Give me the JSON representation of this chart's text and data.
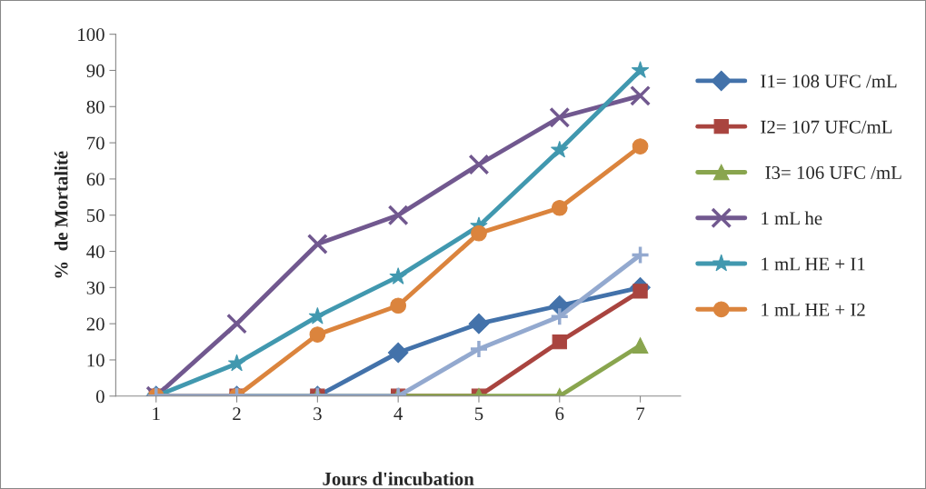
{
  "chart_data": {
    "type": "line",
    "xlabel": "Jours d'incubation",
    "ylabel": "%  de Mortalité",
    "categories": [
      "1",
      "2",
      "3",
      "4",
      "5",
      "6",
      "7"
    ],
    "ylim": [
      0,
      100
    ],
    "yticks": [
      0,
      10,
      20,
      30,
      40,
      50,
      60,
      70,
      80,
      90,
      100
    ],
    "grid": false,
    "legend": "right",
    "series": [
      {
        "name": "I1= 108 UFC /mL",
        "color": "#4372aa",
        "marker": "diamond",
        "values": [
          0,
          0,
          0,
          12,
          20,
          25,
          30
        ]
      },
      {
        "name": "I2= 107 UFC/mL",
        "color": "#a9443f",
        "marker": "square",
        "values": [
          0,
          0,
          0,
          0,
          0,
          15,
          29
        ]
      },
      {
        "name": " I3= 106 UFC /mL",
        "color": "#89a54e",
        "marker": "triangle",
        "values": [
          0,
          0,
          0,
          0,
          0,
          0,
          14
        ]
      },
      {
        "name": "1 mL he",
        "color": "#71588f",
        "marker": "cross",
        "values": [
          0,
          20,
          42,
          50,
          64,
          77,
          83
        ]
      },
      {
        "name": "1 mL HE + I1",
        "color": "#4198af",
        "marker": "star",
        "values": [
          0,
          9,
          22,
          33,
          47,
          68,
          90
        ]
      },
      {
        "name": "1 mL HE + I2",
        "color": "#db843d",
        "marker": "circle",
        "values": [
          0,
          0,
          17,
          25,
          45,
          52,
          69
        ]
      },
      {
        "color": "#93a9cf",
        "marker": "plus",
        "values": [
          0,
          0,
          0,
          0,
          13,
          22,
          39
        ]
      }
    ]
  }
}
